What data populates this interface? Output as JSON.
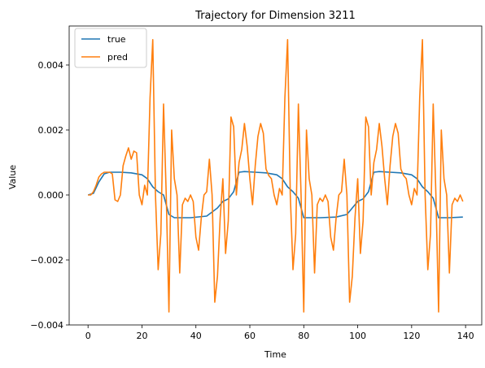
{
  "chart_data": {
    "type": "line",
    "title": "Trajectory for Dimension 3211",
    "xlabel": "Time",
    "ylabel": "Value",
    "xlim": [
      -7,
      146
    ],
    "ylim": [
      -0.004,
      0.0052
    ],
    "xticks": [
      0,
      20,
      40,
      60,
      80,
      100,
      120,
      140
    ],
    "xtick_labels": [
      "0",
      "20",
      "40",
      "60",
      "80",
      "100",
      "120",
      "140"
    ],
    "yticks": [
      -0.004,
      -0.002,
      0.0,
      0.002,
      0.004
    ],
    "ytick_labels": [
      "−0.004",
      "−0.002",
      "0.000",
      "0.002",
      "0.004"
    ],
    "legend": {
      "placement": "top-left",
      "entries": [
        "true",
        "pred"
      ]
    },
    "grid": false,
    "series": [
      {
        "name": "true",
        "color": "#1f77b4",
        "points": [
          [
            0,
            0.0
          ],
          [
            2,
            5e-05
          ],
          [
            4,
            0.0004
          ],
          [
            6,
            0.00065
          ],
          [
            8,
            0.0007
          ],
          [
            12,
            0.0007
          ],
          [
            16,
            0.00068
          ],
          [
            20,
            0.00062
          ],
          [
            22,
            0.0005
          ],
          [
            24,
            0.00025
          ],
          [
            26,
            0.0001
          ],
          [
            28,
            0.0
          ],
          [
            30,
            -0.0006
          ],
          [
            32,
            -0.0007
          ],
          [
            38,
            -0.0007
          ],
          [
            44,
            -0.00065
          ],
          [
            48,
            -0.0004
          ],
          [
            50,
            -0.0002
          ],
          [
            52,
            -0.00012
          ],
          [
            54,
            0.0001
          ],
          [
            56,
            0.0007
          ],
          [
            58,
            0.00072
          ],
          [
            62,
            0.0007
          ],
          [
            66,
            0.00068
          ],
          [
            70,
            0.00062
          ],
          [
            72,
            0.0005
          ],
          [
            74,
            0.00025
          ],
          [
            76,
            0.0001
          ],
          [
            78,
            -0.0001
          ],
          [
            80,
            -0.0007
          ],
          [
            86,
            -0.0007
          ],
          [
            92,
            -0.00068
          ],
          [
            96,
            -0.0006
          ],
          [
            98,
            -0.0004
          ],
          [
            100,
            -0.0002
          ],
          [
            102,
            -0.00012
          ],
          [
            104,
            0.0001
          ],
          [
            106,
            0.0007
          ],
          [
            108,
            0.00072
          ],
          [
            112,
            0.0007
          ],
          [
            116,
            0.00068
          ],
          [
            120,
            0.00062
          ],
          [
            122,
            0.0005
          ],
          [
            124,
            0.00025
          ],
          [
            126,
            0.0001
          ],
          [
            128,
            -0.0001
          ],
          [
            130,
            -0.0007
          ],
          [
            134,
            -0.0007
          ],
          [
            139,
            -0.00068
          ]
        ]
      },
      {
        "name": "pred",
        "color": "#ff7f0e",
        "points": [
          [
            0,
            0.0
          ],
          [
            1,
            0.0
          ],
          [
            2,
            0.0001
          ],
          [
            3,
            0.0003
          ],
          [
            4,
            0.00055
          ],
          [
            5,
            0.00065
          ],
          [
            6,
            0.0007
          ],
          [
            8,
            0.0007
          ],
          [
            9,
            0.00065
          ],
          [
            10,
            -0.00015
          ],
          [
            11,
            -0.0002
          ],
          [
            12,
            0.0
          ],
          [
            13,
            0.0009
          ],
          [
            14,
            0.0012
          ],
          [
            15,
            0.00145
          ],
          [
            16,
            0.0011
          ],
          [
            17,
            0.00135
          ],
          [
            18,
            0.0013
          ],
          [
            19,
            0.0
          ],
          [
            20,
            -0.0003
          ],
          [
            21,
            0.0003
          ],
          [
            22,
            0.0
          ],
          [
            23,
            0.003
          ],
          [
            24,
            0.00478
          ],
          [
            25,
            0.0
          ],
          [
            26,
            -0.0023
          ],
          [
            27,
            -0.0012
          ],
          [
            28,
            0.0028
          ],
          [
            29,
            0.0
          ],
          [
            30,
            -0.0036
          ],
          [
            31,
            0.002
          ],
          [
            32,
            0.0005
          ],
          [
            33,
            0.0
          ],
          [
            34,
            -0.0024
          ],
          [
            35,
            -0.0003
          ],
          [
            36,
            -0.0001
          ],
          [
            37,
            -0.0002
          ],
          [
            38,
            0.0
          ],
          [
            39,
            -0.0002
          ],
          [
            40,
            -0.0013
          ],
          [
            41,
            -0.0017
          ],
          [
            42,
            -0.0007
          ],
          [
            43,
            0.0
          ],
          [
            44,
            0.0001
          ],
          [
            45,
            0.0011
          ],
          [
            46,
            0.0
          ],
          [
            47,
            -0.0033
          ],
          [
            48,
            -0.0025
          ],
          [
            49,
            -0.0007
          ],
          [
            50,
            0.0005
          ],
          [
            51,
            -0.0018
          ],
          [
            52,
            -0.0008
          ],
          [
            53,
            0.0024
          ],
          [
            54,
            0.0021
          ],
          [
            55,
            0.0
          ],
          [
            56,
            0.001
          ],
          [
            57,
            0.0014
          ],
          [
            58,
            0.0022
          ],
          [
            59,
            0.0015
          ],
          [
            60,
            0.0005
          ],
          [
            61,
            -0.0003
          ],
          [
            62,
            0.0009
          ],
          [
            63,
            0.0018
          ],
          [
            64,
            0.0022
          ],
          [
            65,
            0.0019
          ],
          [
            66,
            0.0008
          ],
          [
            67,
            0.0006
          ],
          [
            68,
            0.0005
          ],
          [
            69,
            0.0
          ],
          [
            70,
            -0.0003
          ],
          [
            71,
            0.0002
          ],
          [
            72,
            0.0
          ],
          [
            73,
            0.003
          ],
          [
            74,
            0.00478
          ],
          [
            75,
            0.0
          ],
          [
            76,
            -0.0023
          ],
          [
            77,
            -0.0012
          ],
          [
            78,
            0.0028
          ],
          [
            79,
            0.0
          ],
          [
            80,
            -0.0036
          ],
          [
            81,
            0.002
          ],
          [
            82,
            0.0005
          ],
          [
            83,
            0.0
          ],
          [
            84,
            -0.0024
          ],
          [
            85,
            -0.0003
          ],
          [
            86,
            -0.0001
          ],
          [
            87,
            -0.0002
          ],
          [
            88,
            0.0
          ],
          [
            89,
            -0.0002
          ],
          [
            90,
            -0.0013
          ],
          [
            91,
            -0.0017
          ],
          [
            92,
            -0.0007
          ],
          [
            93,
            0.0
          ],
          [
            94,
            0.0001
          ],
          [
            95,
            0.0011
          ],
          [
            96,
            0.0
          ],
          [
            97,
            -0.0033
          ],
          [
            98,
            -0.0025
          ],
          [
            99,
            -0.0007
          ],
          [
            100,
            0.0005
          ],
          [
            101,
            -0.0018
          ],
          [
            102,
            -0.0008
          ],
          [
            103,
            0.0024
          ],
          [
            104,
            0.0021
          ],
          [
            105,
            0.0
          ],
          [
            106,
            0.001
          ],
          [
            107,
            0.0014
          ],
          [
            108,
            0.0022
          ],
          [
            109,
            0.0015
          ],
          [
            110,
            0.0005
          ],
          [
            111,
            -0.0003
          ],
          [
            112,
            0.0009
          ],
          [
            113,
            0.0018
          ],
          [
            114,
            0.0022
          ],
          [
            115,
            0.0019
          ],
          [
            116,
            0.0008
          ],
          [
            117,
            0.0006
          ],
          [
            118,
            0.0005
          ],
          [
            119,
            0.0
          ],
          [
            120,
            -0.0003
          ],
          [
            121,
            0.0002
          ],
          [
            122,
            0.0
          ],
          [
            123,
            0.003
          ],
          [
            124,
            0.00478
          ],
          [
            125,
            0.0
          ],
          [
            126,
            -0.0023
          ],
          [
            127,
            -0.0012
          ],
          [
            128,
            0.0028
          ],
          [
            129,
            0.0
          ],
          [
            130,
            -0.0036
          ],
          [
            131,
            0.002
          ],
          [
            132,
            0.0005
          ],
          [
            133,
            0.0
          ],
          [
            134,
            -0.0024
          ],
          [
            135,
            -0.0003
          ],
          [
            136,
            -0.0001
          ],
          [
            137,
            -0.0002
          ],
          [
            138,
            0.0
          ],
          [
            139,
            -0.0002
          ]
        ]
      }
    ]
  }
}
